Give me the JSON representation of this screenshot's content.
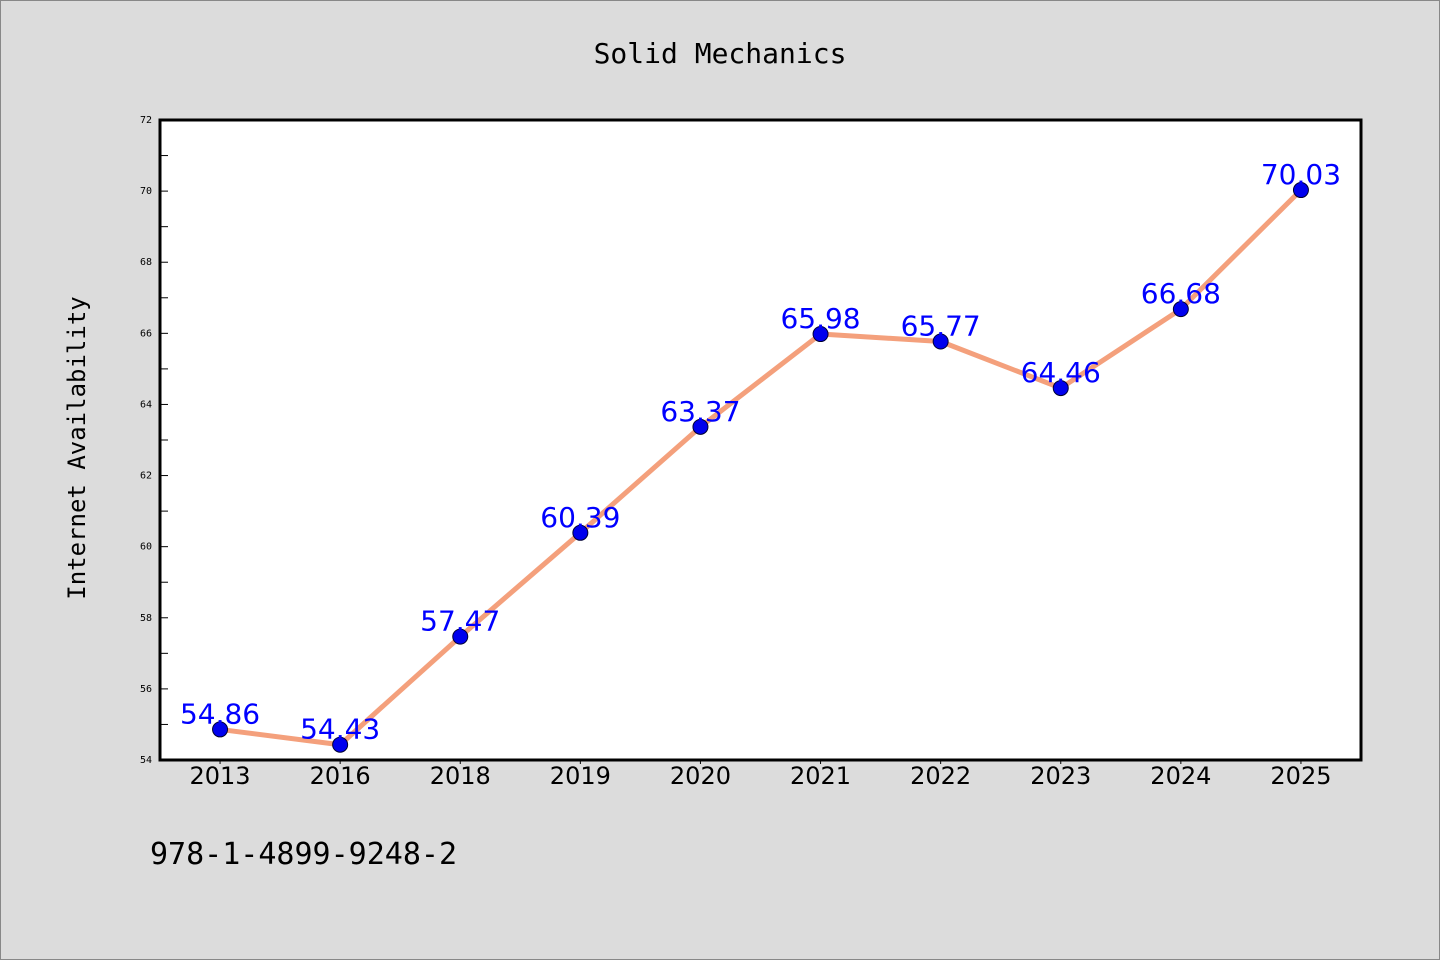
{
  "chart_data": {
    "type": "line",
    "title": "Solid Mechanics",
    "xlabel": "",
    "ylabel": "Internet Availability",
    "categories": [
      "2013",
      "2016",
      "2018",
      "2019",
      "2020",
      "2021",
      "2022",
      "2023",
      "2024",
      "2025"
    ],
    "series": [
      {
        "values": [
          54.86,
          54.43,
          57.47,
          60.39,
          63.37,
          65.98,
          65.77,
          64.46,
          66.68,
          70.03
        ],
        "labels": [
          "54.86",
          "54.43",
          "57.47",
          "60.39",
          "63.37",
          "65.98",
          "65.77",
          "64.46",
          "66.68",
          "70.03"
        ],
        "line_color": "#f4a07c",
        "marker_color": "#0000ee",
        "label_color": "#0000ff"
      }
    ],
    "ylim": [
      54,
      72
    ],
    "yticks": [
      "54",
      "56",
      "58",
      "60",
      "62",
      "64",
      "66",
      "68",
      "70",
      "72"
    ],
    "grid": false,
    "legend": "none"
  },
  "footer": {
    "isbn": "978-1-4899-9248-2"
  },
  "colors": {
    "background": "#dcdcdc",
    "plot_background": "#ffffff"
  }
}
